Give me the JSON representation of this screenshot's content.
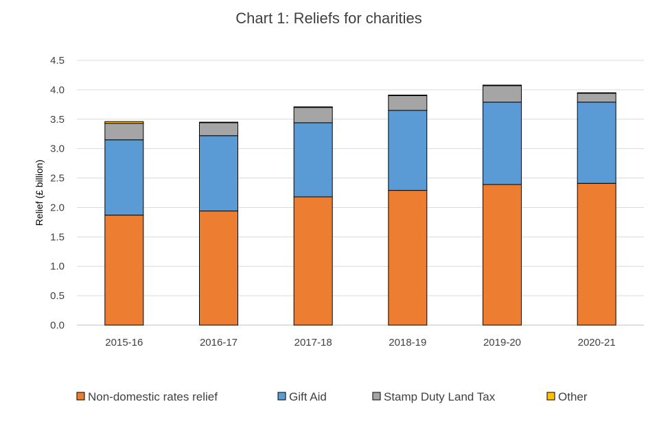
{
  "chart_data": {
    "type": "bar",
    "stacked": true,
    "title": "Chart 1: Reliefs for charities",
    "xlabel": "",
    "ylabel": "Relief (£ billion)",
    "ylim": [
      0,
      4.5
    ],
    "yticks": [
      "0.0",
      "0.5",
      "1.0",
      "1.5",
      "2.0",
      "2.5",
      "3.0",
      "3.5",
      "4.0",
      "4.5"
    ],
    "grid": true,
    "legend_position": "bottom",
    "categories": [
      "2015-16",
      "2016-17",
      "2017-18",
      "2018-19",
      "2019-20",
      "2020-21"
    ],
    "series": [
      {
        "name": "Non-domestic rates relief",
        "color": "#ed7d31",
        "values": [
          1.87,
          1.94,
          2.18,
          2.29,
          2.39,
          2.41
        ]
      },
      {
        "name": "Gift Aid",
        "color": "#5b9bd5",
        "values": [
          1.28,
          1.28,
          1.26,
          1.36,
          1.4,
          1.38
        ]
      },
      {
        "name": "Stamp Duty Land Tax",
        "color": "#a5a5a5",
        "values": [
          0.28,
          0.22,
          0.26,
          0.25,
          0.28,
          0.15
        ]
      },
      {
        "name": "Other",
        "color": "#ffc000",
        "values": [
          0.03,
          0.01,
          0.01,
          0.01,
          0.01,
          0.01
        ]
      }
    ]
  }
}
